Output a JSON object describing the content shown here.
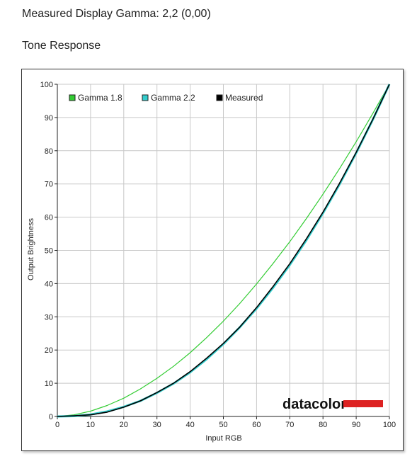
{
  "page": {
    "heading": "Measured Display Gamma: 2,2 (0,00)",
    "subheading": "Tone Response"
  },
  "chart_data": {
    "type": "line",
    "xlabel": "Input RGB",
    "ylabel": "Output Brightness",
    "xlim": [
      0,
      100
    ],
    "ylim": [
      0,
      100
    ],
    "xticks": [
      0,
      10,
      20,
      30,
      40,
      50,
      60,
      70,
      80,
      90,
      100
    ],
    "yticks": [
      0,
      10,
      20,
      30,
      40,
      50,
      60,
      70,
      80,
      90,
      100
    ],
    "grid": true,
    "legend_position": "top-left",
    "x": [
      0,
      5,
      10,
      15,
      20,
      25,
      30,
      35,
      40,
      45,
      50,
      55,
      60,
      65,
      70,
      75,
      80,
      85,
      90,
      95,
      100
    ],
    "series": [
      {
        "name": "Gamma 1.8",
        "color": "#33cc33",
        "values": [
          0,
          0.5,
          1.6,
          3.3,
          5.5,
          8.3,
          11.5,
          15.1,
          19.2,
          23.8,
          28.7,
          34.1,
          39.9,
          46.1,
          52.6,
          59.6,
          66.9,
          74.6,
          82.7,
          91.2,
          100
        ]
      },
      {
        "name": "Gamma 2.2",
        "color": "#33cccc",
        "values": [
          0,
          0.1,
          0.6,
          1.5,
          2.9,
          4.7,
          7.1,
          9.9,
          13.3,
          17.3,
          21.8,
          26.9,
          32.5,
          38.8,
          45.6,
          53.1,
          61.2,
          69.9,
          79.3,
          89.3,
          100
        ]
      },
      {
        "name": "Measured",
        "color": "#000000",
        "values": [
          0,
          0.2,
          0.5,
          1.3,
          2.8,
          4.7,
          7.2,
          10.0,
          13.5,
          17.6,
          22.0,
          27.0,
          32.8,
          39.2,
          46.0,
          53.5,
          61.5,
          70.2,
          79.5,
          89.4,
          100
        ]
      }
    ]
  },
  "logo": {
    "text": "datacolor",
    "bar_color": "#dd2222"
  }
}
